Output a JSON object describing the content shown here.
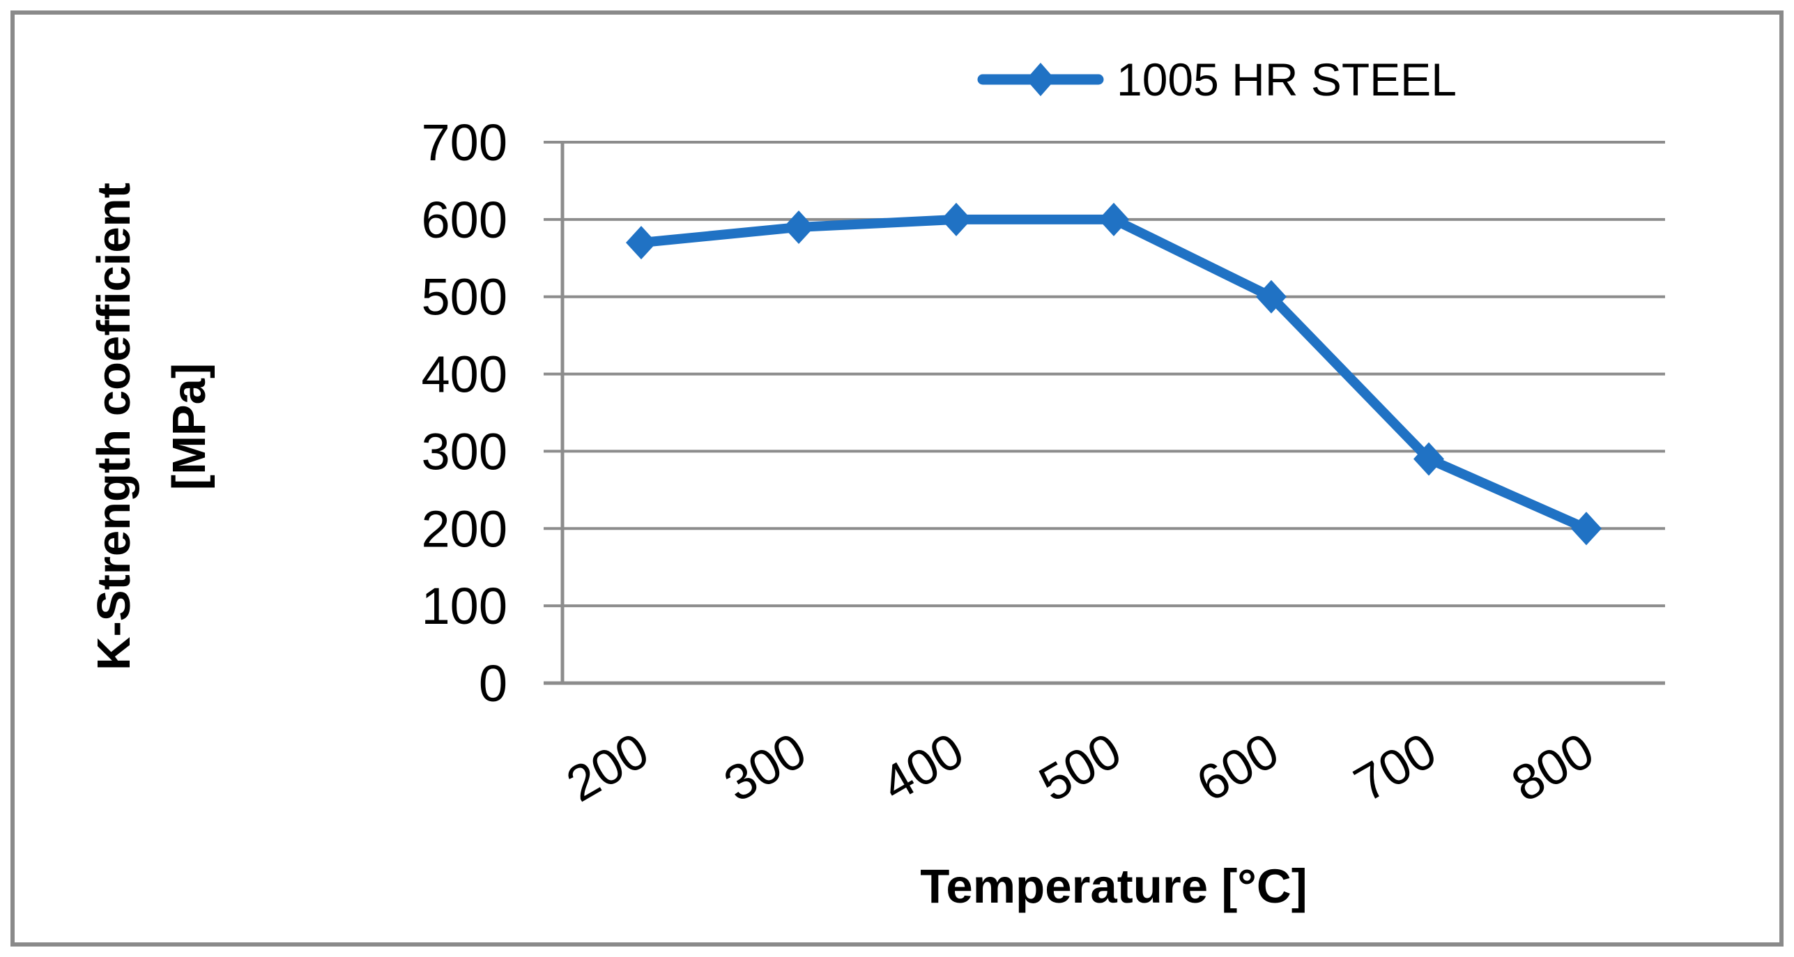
{
  "legend": {
    "label": "1005 HR STEEL"
  },
  "axes": {
    "y_title_line1": "K-Strength coefficient",
    "y_title_line2": "[MPa]",
    "x_title": "Temperature [°C]"
  },
  "chart_data": {
    "type": "line",
    "categories": [
      200,
      300,
      400,
      500,
      600,
      700,
      800
    ],
    "series": [
      {
        "name": "1005 HR STEEL",
        "values": [
          570,
          590,
          600,
          600,
          500,
          290,
          200
        ],
        "marker": "diamond"
      }
    ],
    "xlabel": "Temperature [°C]",
    "ylabel": "K-Strength coefficient [MPa]",
    "ylim": [
      0,
      700
    ],
    "yticks": [
      0,
      100,
      200,
      300,
      400,
      500,
      600,
      700
    ],
    "grid": "horizontal",
    "legend_position": "top-right"
  },
  "colors": {
    "series_blue": "#2072C4",
    "axis_gray": "#8C8C8C",
    "border_gray": "#8A8A8A",
    "text_black": "#000000"
  }
}
